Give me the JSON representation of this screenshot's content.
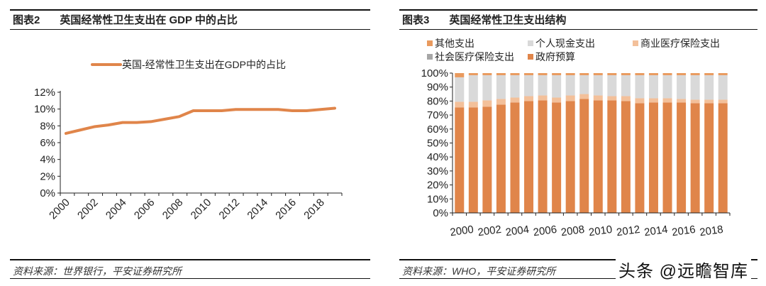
{
  "colors": {
    "orange": "#E0854A",
    "light_orange": "#F3C09A",
    "grey": "#A6A6A6",
    "light_grey": "#D9D9D9",
    "other": "#E99A5E"
  },
  "left": {
    "label": "图表2",
    "title": "英国经常性卫生支出在 GDP 中的占比",
    "source": "资料来源：世界银行，平安证券研究所"
  },
  "right": {
    "label": "图表3",
    "title": "英国经常性卫生支出结构",
    "source": "资料来源：WHO，平安证券研究所"
  },
  "watermark": "头条 @远瞻智库",
  "chart_data": [
    {
      "type": "line",
      "legend_position": "top",
      "grid": false,
      "x": [
        2000,
        2001,
        2002,
        2003,
        2004,
        2005,
        2006,
        2007,
        2008,
        2009,
        2010,
        2011,
        2012,
        2013,
        2014,
        2015,
        2016,
        2017,
        2018,
        2019
      ],
      "x_tick_labels": [
        "2000",
        "2002",
        "2004",
        "2006",
        "2008",
        "2010",
        "2012",
        "2014",
        "2016",
        "2018"
      ],
      "y_tick_labels": [
        "0%",
        "2%",
        "4%",
        "6%",
        "8%",
        "10%",
        "12%"
      ],
      "ylim": [
        0,
        12
      ],
      "series": [
        {
          "name": "英国-经常性卫生支出在GDP中的占比",
          "color": "#E0854A",
          "values": [
            7.1,
            7.5,
            7.9,
            8.1,
            8.4,
            8.4,
            8.5,
            8.8,
            9.1,
            9.8,
            9.8,
            9.8,
            9.95,
            9.95,
            9.95,
            9.95,
            9.8,
            9.8,
            9.95,
            10.1
          ]
        }
      ]
    },
    {
      "type": "bar",
      "stacked": true,
      "legend_position": "top",
      "grid": false,
      "categories": [
        2000,
        2001,
        2002,
        2003,
        2004,
        2005,
        2006,
        2007,
        2008,
        2009,
        2010,
        2011,
        2012,
        2013,
        2014,
        2015,
        2016,
        2017,
        2018,
        2019
      ],
      "x_tick_labels": [
        "2000",
        "2002",
        "2004",
        "2006",
        "2008",
        "2010",
        "2012",
        "2014",
        "2016",
        "2018"
      ],
      "y_tick_labels": [
        "0%",
        "10%",
        "20%",
        "30%",
        "40%",
        "50%",
        "60%",
        "70%",
        "80%",
        "90%",
        "100%"
      ],
      "ylim": [
        0,
        100
      ],
      "legend_order": [
        "其他支出",
        "个人现金支出",
        "商业医疗保险支出",
        "社会医疗保险支出",
        "政府预算"
      ],
      "series": [
        {
          "name": "政府预算",
          "color": "#E0854A",
          "values": [
            75.5,
            75.5,
            76,
            77.5,
            79,
            80,
            80.5,
            79,
            80,
            81.5,
            80.5,
            80.5,
            80,
            78.5,
            79,
            79,
            79,
            78.5,
            78.5,
            78.5
          ]
        },
        {
          "name": "社会医疗保险支出",
          "color": "#A6A6A6",
          "values": [
            0,
            0,
            0,
            0,
            0,
            0,
            0,
            0,
            0,
            0,
            0,
            0,
            0,
            0,
            0,
            0,
            0,
            0,
            0,
            0
          ]
        },
        {
          "name": "商业医疗保险支出",
          "color": "#F3C09A",
          "values": [
            4,
            4,
            4.5,
            4,
            3.5,
            3.5,
            3.5,
            3.5,
            4,
            3.5,
            3.5,
            3,
            3.5,
            3.5,
            3,
            3,
            2.5,
            2.5,
            2.5,
            2.5
          ]
        },
        {
          "name": "个人现金支出",
          "color": "#D9D9D9",
          "values": [
            17.5,
            19,
            18,
            17,
            16,
            15,
            14.5,
            16,
            14.5,
            13.5,
            14.5,
            15,
            15,
            16.5,
            16.5,
            16.5,
            17,
            17.5,
            17.5,
            17.5
          ]
        },
        {
          "name": "其他支出",
          "color": "#E99A5E",
          "values": [
            3,
            1.5,
            1.5,
            1.5,
            1.5,
            1.5,
            1.5,
            1.5,
            1.5,
            1.5,
            1.5,
            1.5,
            1.5,
            1.5,
            1.5,
            1.5,
            1.5,
            1.5,
            1.5,
            1.5
          ]
        }
      ]
    }
  ]
}
